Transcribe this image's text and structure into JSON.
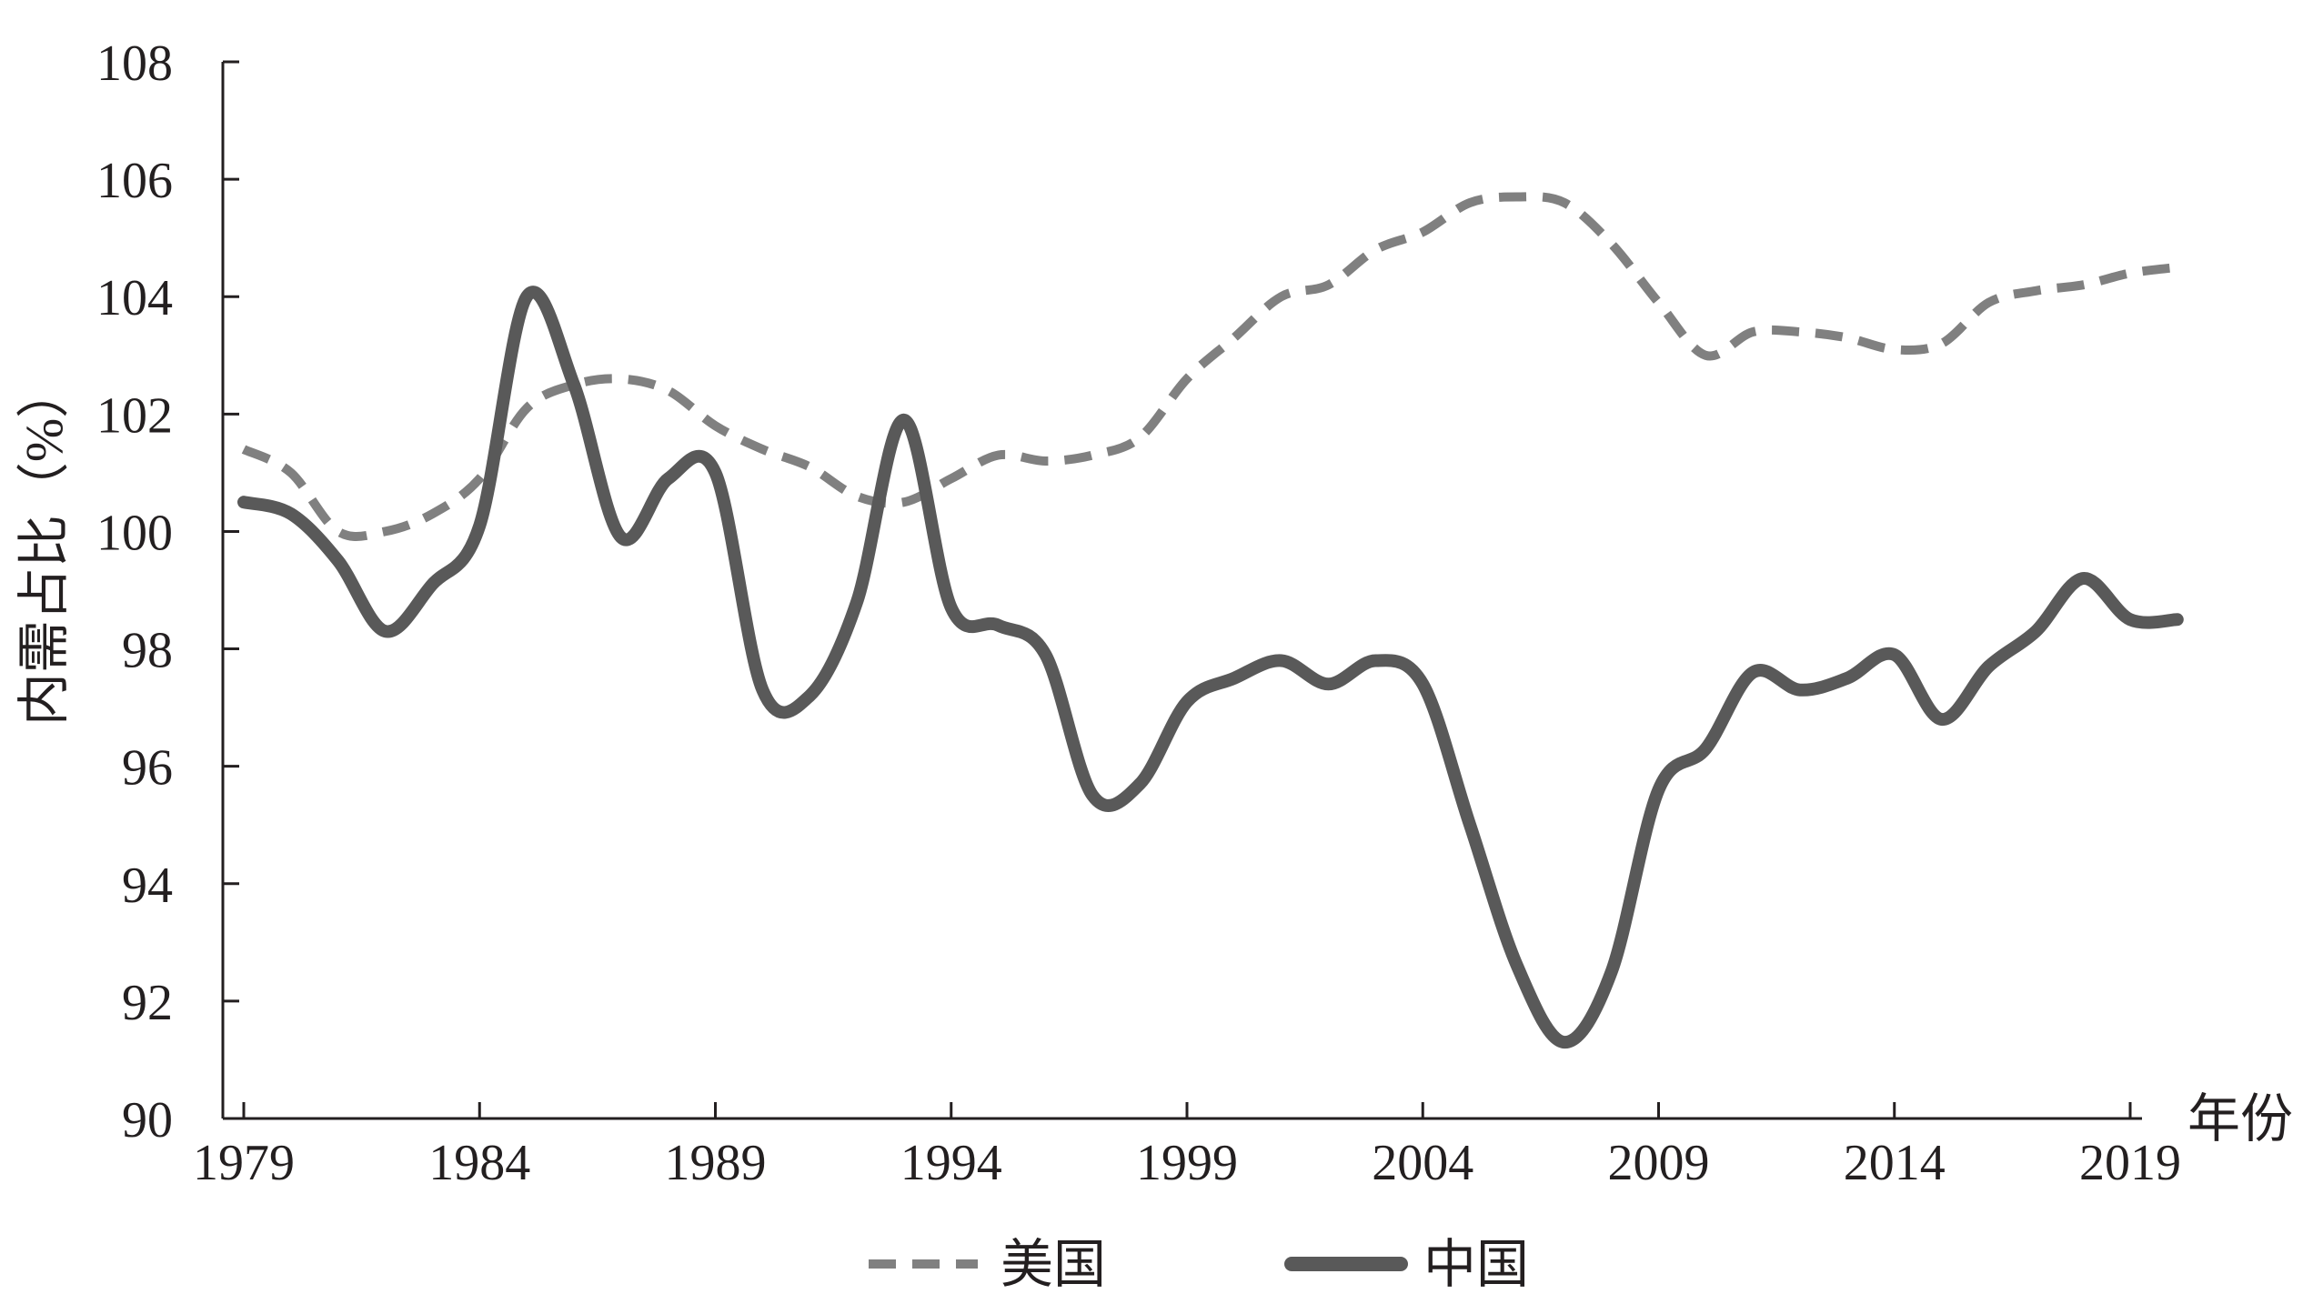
{
  "chart_data": {
    "type": "line",
    "title": "",
    "xlabel": "年份",
    "ylabel": "内需占比（%）",
    "xlim": [
      1979,
      2020
    ],
    "ylim": [
      90,
      108
    ],
    "y_ticks": [
      90,
      92,
      94,
      96,
      98,
      100,
      102,
      104,
      106,
      108
    ],
    "x_ticks": [
      1979,
      1984,
      1989,
      1994,
      1999,
      2004,
      2009,
      2014,
      2019
    ],
    "grid": false,
    "legend_position": "bottom",
    "series": [
      {
        "name": "美国",
        "style": "dashed",
        "color": "#808080",
        "x": [
          1979,
          1980,
          1981,
          1982,
          1983,
          1984,
          1985,
          1986,
          1987,
          1988,
          1989,
          1990,
          1991,
          1992,
          1993,
          1994,
          1995,
          1996,
          1997,
          1998,
          1999,
          2000,
          2001,
          2002,
          2003,
          2004,
          2005,
          2006,
          2007,
          2008,
          2009,
          2010,
          2011,
          2012,
          2013,
          2014,
          2015,
          2016,
          2017,
          2018,
          2019,
          2020
        ],
        "values": [
          101.4,
          101.0,
          100.0,
          100.0,
          100.3,
          100.9,
          102.1,
          102.5,
          102.6,
          102.4,
          101.8,
          101.4,
          101.1,
          100.6,
          100.5,
          100.9,
          101.3,
          101.2,
          101.3,
          101.6,
          102.6,
          103.3,
          104.0,
          104.2,
          104.8,
          105.1,
          105.6,
          105.7,
          105.6,
          104.9,
          103.9,
          103.0,
          103.4,
          103.4,
          103.3,
          103.1,
          103.2,
          103.9,
          104.1,
          104.2,
          104.4,
          104.5
        ]
      },
      {
        "name": "中国",
        "style": "solid",
        "color": "#595959",
        "x": [
          1979,
          1980,
          1981,
          1982,
          1983,
          1984,
          1985,
          1986,
          1987,
          1988,
          1989,
          1990,
          1991,
          1992,
          1993,
          1994,
          1995,
          1996,
          1997,
          1998,
          1999,
          2000,
          2001,
          2002,
          2003,
          2004,
          2005,
          2006,
          2007,
          2008,
          2009,
          2010,
          2011,
          2012,
          2013,
          2014,
          2015,
          2016,
          2017,
          2018,
          2019,
          2020
        ],
        "values": [
          100.5,
          100.3,
          99.5,
          98.3,
          99.1,
          100.1,
          104.0,
          102.5,
          99.9,
          100.9,
          101.0,
          97.3,
          97.2,
          98.8,
          101.9,
          98.7,
          98.4,
          97.9,
          95.5,
          95.7,
          97.1,
          97.5,
          97.8,
          97.4,
          97.8,
          97.4,
          95.0,
          92.6,
          91.3,
          92.5,
          95.6,
          96.3,
          97.6,
          97.3,
          97.5,
          97.9,
          96.8,
          97.7,
          98.3,
          99.2,
          98.5,
          98.5
        ]
      }
    ]
  }
}
